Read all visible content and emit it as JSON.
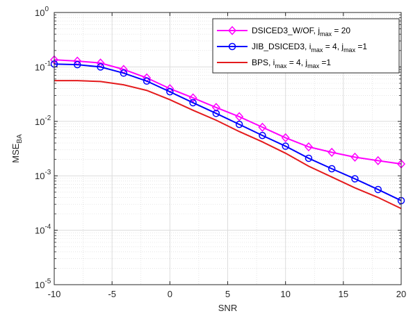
{
  "chart_data": {
    "type": "line",
    "xlabel": "SNR",
    "ylabel": {
      "base": "MSE",
      "sub": "BA"
    },
    "xlim": [
      -10,
      20
    ],
    "ylim": [
      1e-05,
      1
    ],
    "yscale": "log",
    "grid": true,
    "legend_position": "top-right",
    "x_ticks": [
      -10,
      -5,
      0,
      5,
      10,
      15,
      20
    ],
    "x_tick_labels": [
      "-10",
      "-5",
      "0",
      "5",
      "10",
      "15",
      "20"
    ],
    "y_ticks": [
      {
        "value": 1,
        "base": "10",
        "exp": "0"
      },
      {
        "value": 0.1,
        "base": "10",
        "exp": "-1"
      },
      {
        "value": 0.01,
        "base": "10",
        "exp": "-2"
      },
      {
        "value": 0.001,
        "base": "10",
        "exp": "-3"
      },
      {
        "value": 0.0001,
        "base": "10",
        "exp": "-4"
      },
      {
        "value": 1e-05,
        "base": "10",
        "exp": "-5"
      }
    ],
    "series": [
      {
        "legend": [
          {
            "text": "DSICED3_W/OF, j"
          },
          {
            "text": "max",
            "sub": true
          },
          {
            "text": " = 20"
          }
        ],
        "color": "#ff00ff",
        "marker": "diamond",
        "x": [
          -10,
          -8,
          -6,
          -4,
          -2,
          0,
          2,
          4,
          6,
          8,
          10,
          12,
          14,
          16,
          18,
          20
        ],
        "y": [
          0.135,
          0.128,
          0.118,
          0.09,
          0.063,
          0.04,
          0.027,
          0.018,
          0.0122,
          0.0078,
          0.005,
          0.0034,
          0.0027,
          0.0022,
          0.0019,
          0.00165
        ]
      },
      {
        "legend": [
          {
            "text": "JIB_DSICED3, i"
          },
          {
            "text": "max",
            "sub": true
          },
          {
            "text": " = 4, j"
          },
          {
            "text": "max",
            "sub": true
          },
          {
            "text": " =1"
          }
        ],
        "color": "#0000ff",
        "marker": "circle",
        "x": [
          -10,
          -8,
          -6,
          -4,
          -2,
          0,
          2,
          4,
          6,
          8,
          10,
          12,
          14,
          16,
          18,
          20
        ],
        "y": [
          0.113,
          0.11,
          0.1,
          0.077,
          0.055,
          0.035,
          0.022,
          0.014,
          0.0088,
          0.0055,
          0.0035,
          0.0021,
          0.00135,
          0.00088,
          0.00056,
          0.00035
        ]
      },
      {
        "legend": [
          {
            "text": "BPS, i"
          },
          {
            "text": "max",
            "sub": true
          },
          {
            "text": " = 4, j"
          },
          {
            "text": "max",
            "sub": true
          },
          {
            "text": " =1"
          }
        ],
        "color": "#e41a1c",
        "marker": "none",
        "x": [
          -10,
          -8,
          -6,
          -4,
          -2,
          0,
          2,
          4,
          6,
          8,
          10,
          12,
          14,
          16,
          18,
          20
        ],
        "y": [
          0.056,
          0.056,
          0.054,
          0.047,
          0.037,
          0.025,
          0.016,
          0.0105,
          0.0065,
          0.0042,
          0.0026,
          0.0015,
          0.00095,
          0.0006,
          0.0004,
          0.00025
        ]
      }
    ]
  }
}
